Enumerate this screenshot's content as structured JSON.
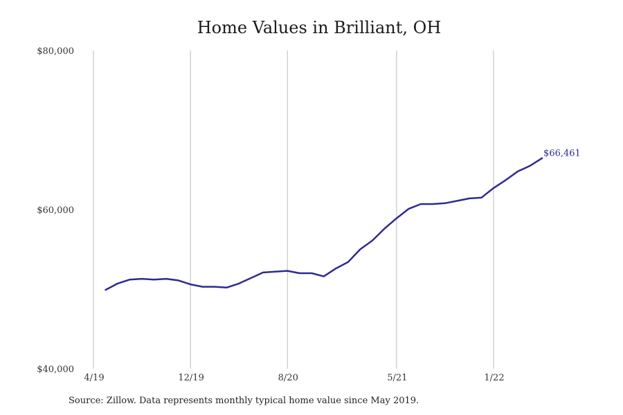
{
  "chart_data": {
    "type": "line",
    "title": "Home Values in Brilliant, OH",
    "xlabel": "",
    "ylabel": "",
    "ylim": [
      40000,
      80000
    ],
    "y_ticks": [
      {
        "value": 40000,
        "label": "$40,000"
      },
      {
        "value": 60000,
        "label": "$60,000"
      },
      {
        "value": 80000,
        "label": "$80,000"
      }
    ],
    "x_ticks": [
      {
        "date": "2019-04",
        "label": "4/19"
      },
      {
        "date": "2019-12",
        "label": "12/19"
      },
      {
        "date": "2020-08",
        "label": "8/20"
      },
      {
        "date": "2021-05",
        "label": "5/21"
      },
      {
        "date": "2022-01",
        "label": "1/22"
      }
    ],
    "grid": "vertical lines at x ticks",
    "line_color": "#2e2a8f",
    "grid_color": "#bbbbbb",
    "series": [
      {
        "x": [
          "2019-05",
          "2019-06",
          "2019-07",
          "2019-08",
          "2019-09",
          "2019-10",
          "2019-11",
          "2019-12",
          "2020-01",
          "2020-02",
          "2020-03",
          "2020-04",
          "2020-05",
          "2020-06",
          "2020-07",
          "2020-08",
          "2020-09",
          "2020-10",
          "2020-11",
          "2020-12",
          "2021-01",
          "2021-02",
          "2021-03",
          "2021-04",
          "2021-05",
          "2021-06",
          "2021-07",
          "2021-08",
          "2021-09",
          "2021-10",
          "2021-11",
          "2021-12",
          "2022-01",
          "2022-02",
          "2022-03",
          "2022-04",
          "2022-05"
        ],
        "values": [
          49900,
          50700,
          51200,
          51300,
          51200,
          51300,
          51100,
          50600,
          50300,
          50300,
          50200,
          50700,
          51400,
          52100,
          52200,
          52300,
          52000,
          52000,
          51600,
          52600,
          53400,
          55000,
          56100,
          57600,
          58900,
          60100,
          60700,
          60700,
          60800,
          61100,
          61400,
          61500,
          62700,
          63700,
          64800,
          65500,
          66461
        ]
      }
    ],
    "end_label": "$66,461"
  },
  "footnote": "Source: Zillow. Data represents monthly typical home value since May 2019."
}
